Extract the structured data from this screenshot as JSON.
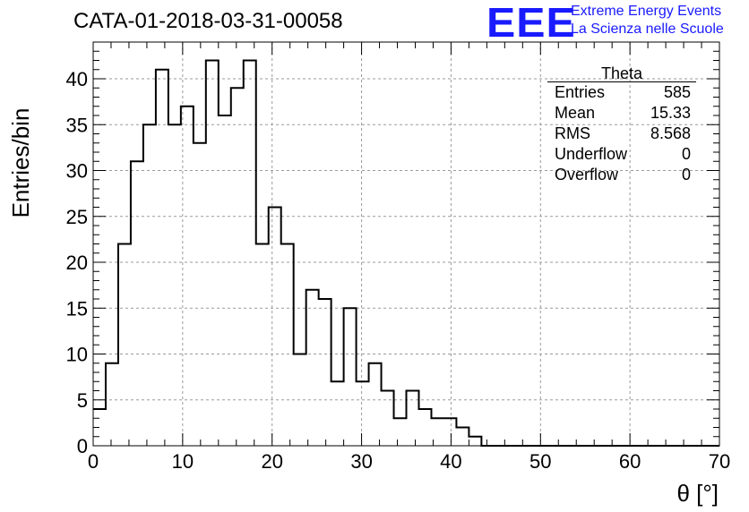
{
  "title": "CATA-01-2018-03-31-00058",
  "logo": {
    "mark": "EEE",
    "line1": "Extreme Energy Events",
    "line2": "La Scienza nelle Scuole",
    "color": "#1a1aff"
  },
  "stats": {
    "name": "Theta",
    "rows": [
      {
        "label": "Entries",
        "value": "585"
      },
      {
        "label": "Mean",
        "value": "15.33"
      },
      {
        "label": "RMS",
        "value": "8.568"
      },
      {
        "label": "Underflow",
        "value": "0"
      },
      {
        "label": "Overflow",
        "value": "0"
      }
    ]
  },
  "chart_data": {
    "type": "bar",
    "histogram": true,
    "title": "CATA-01-2018-03-31-00058",
    "xlabel": "θ [°]",
    "ylabel": "Entries/bin",
    "xlim": [
      0,
      70
    ],
    "ylim": [
      0,
      44
    ],
    "x_ticks": [
      0,
      10,
      20,
      30,
      40,
      50,
      60,
      70
    ],
    "y_ticks": [
      0,
      5,
      10,
      15,
      20,
      25,
      30,
      35,
      40
    ],
    "grid": true,
    "bin_width": 1.4,
    "bin_start": 0,
    "values": [
      4,
      9,
      22,
      31,
      35,
      41,
      35,
      37,
      33,
      42,
      36,
      39,
      42,
      22,
      26,
      22,
      10,
      17,
      16,
      7,
      15,
      7,
      9,
      6,
      3,
      6,
      4,
      3,
      3,
      2,
      1,
      0,
      0,
      0,
      0,
      0,
      0,
      0,
      0,
      0,
      0,
      0,
      0,
      0,
      0,
      0,
      0,
      0,
      0,
      0
    ],
    "line_color": "#000000"
  }
}
